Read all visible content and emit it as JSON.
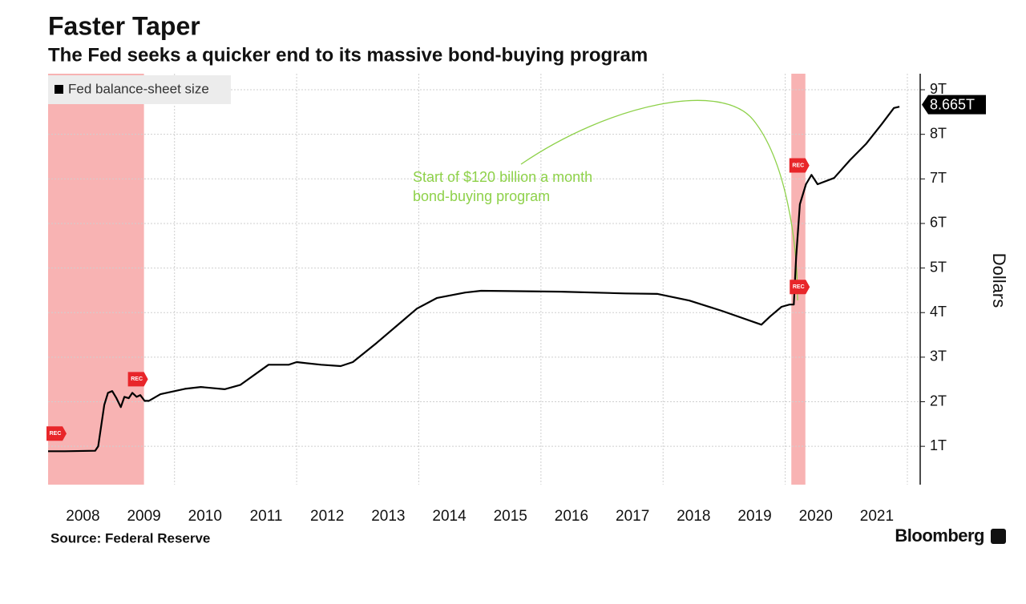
{
  "chart_data": {
    "type": "line",
    "title": "Faster Taper",
    "subtitle": "The Fed seeks a quicker end to its massive bond-buying program",
    "y_label": "Dollars",
    "source": "Source: Federal Reserve",
    "brand": "Bloomberg",
    "annotation": [
      "Start of $120 billion a month",
      "bond-buying program"
    ],
    "annotation_color": "#8ed14a",
    "recession_label": "REC",
    "recessions": [
      [
        2007.93,
        2009.5
      ],
      [
        2020.1,
        2020.33
      ]
    ],
    "recession_color": "#f59a9a",
    "xlim": [
      2007.93,
      2022.21
    ],
    "xticks": [
      {
        "value": 2008.5,
        "label": "2008"
      },
      {
        "value": 2009.5,
        "label": "2009"
      },
      {
        "value": 2010.5,
        "label": "2010"
      },
      {
        "value": 2011.5,
        "label": "2011"
      },
      {
        "value": 2012.5,
        "label": "2012"
      },
      {
        "value": 2013.5,
        "label": "2013"
      },
      {
        "value": 2014.5,
        "label": "2014"
      },
      {
        "value": 2015.5,
        "label": "2015"
      },
      {
        "value": 2016.5,
        "label": "2016"
      },
      {
        "value": 2017.5,
        "label": "2017"
      },
      {
        "value": 2018.5,
        "label": "2018"
      },
      {
        "value": 2019.5,
        "label": "2019"
      },
      {
        "value": 2020.5,
        "label": "2020"
      },
      {
        "value": 2021.5,
        "label": "2021"
      }
    ],
    "xgrid": [
      2010,
      2012,
      2014,
      2016,
      2018,
      2020,
      2022
    ],
    "ylim": [
      0.14,
      9.36
    ],
    "yticks": [
      {
        "value": 1,
        "label": "1T"
      },
      {
        "value": 2,
        "label": "2T"
      },
      {
        "value": 3,
        "label": "3T"
      },
      {
        "value": 4,
        "label": "4T"
      },
      {
        "value": 5,
        "label": "5T"
      },
      {
        "value": 6,
        "label": "6T"
      },
      {
        "value": 7,
        "label": "7T"
      },
      {
        "value": 8,
        "label": "8T"
      },
      {
        "value": 9,
        "label": "9T"
      }
    ],
    "grid": true,
    "legend": "top-left",
    "end_label": {
      "value": 8.665,
      "label": "8.665T"
    },
    "series": [
      {
        "name": "Fed balance-sheet size",
        "color": "#000000",
        "x": [
          2007.93,
          2008.2,
          2008.7,
          2008.75,
          2008.85,
          2008.91,
          2008.98,
          2009.05,
          2009.12,
          2009.18,
          2009.25,
          2009.31,
          2009.38,
          2009.44,
          2009.51,
          2009.58,
          2009.77,
          2010.17,
          2010.43,
          2010.82,
          2011.08,
          2011.54,
          2011.87,
          2012.0,
          2012.13,
          2012.4,
          2012.72,
          2012.92,
          2013.31,
          2013.97,
          2014.3,
          2014.76,
          2015.02,
          2016.33,
          2017.38,
          2017.91,
          2018.43,
          2018.96,
          2019.61,
          2019.75,
          2019.94,
          2020.07,
          2020.14,
          2020.18,
          2020.24,
          2020.34,
          2020.43,
          2020.53,
          2020.8,
          2021.06,
          2021.32,
          2021.58,
          2021.78,
          2021.87
        ],
        "values": [
          0.89,
          0.89,
          0.9,
          1.0,
          1.93,
          2.2,
          2.24,
          2.08,
          1.88,
          2.11,
          2.08,
          2.2,
          2.11,
          2.15,
          2.02,
          2.02,
          2.17,
          2.29,
          2.33,
          2.28,
          2.38,
          2.83,
          2.83,
          2.89,
          2.87,
          2.83,
          2.8,
          2.89,
          3.32,
          4.09,
          4.33,
          4.45,
          4.49,
          4.47,
          4.43,
          4.42,
          4.27,
          4.04,
          3.73,
          3.91,
          4.13,
          4.18,
          4.18,
          5.26,
          6.43,
          6.88,
          7.09,
          6.88,
          7.02,
          7.42,
          7.78,
          8.23,
          8.59,
          8.62
        ]
      }
    ]
  }
}
